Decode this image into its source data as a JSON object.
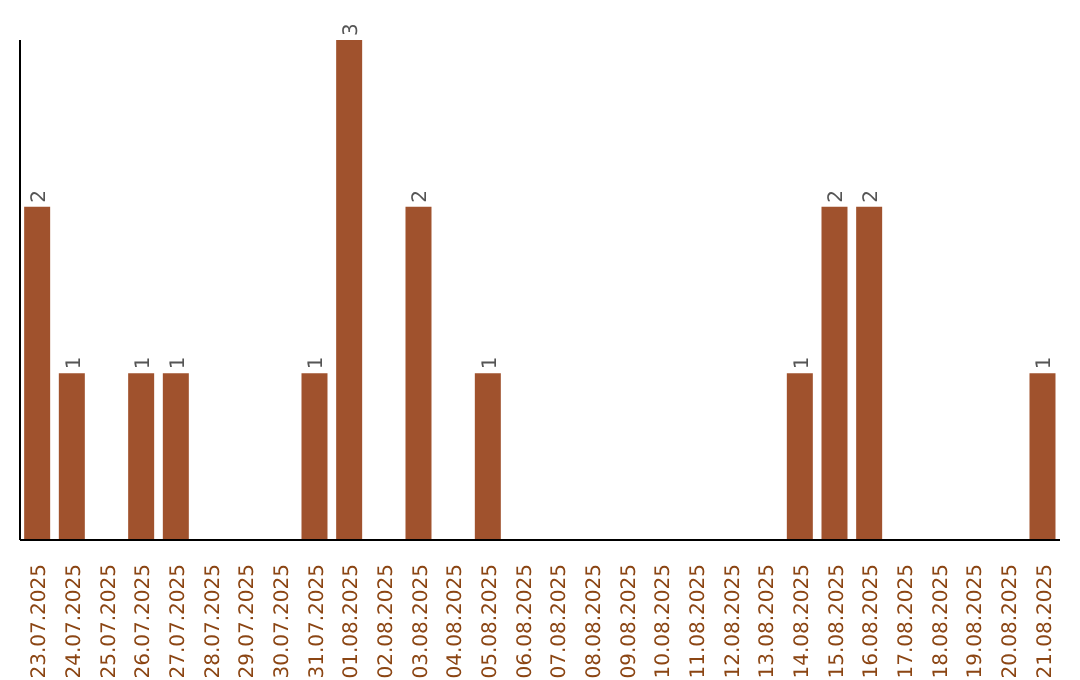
{
  "chart_data": {
    "type": "bar",
    "categories": [
      "23.07.2025",
      "24.07.2025",
      "25.07.2025",
      "26.07.2025",
      "27.07.2025",
      "28.07.2025",
      "29.07.2025",
      "30.07.2025",
      "31.07.2025",
      "01.08.2025",
      "02.08.2025",
      "03.08.2025",
      "04.08.2025",
      "05.08.2025",
      "06.08.2025",
      "07.08.2025",
      "08.08.2025",
      "09.08.2025",
      "10.08.2025",
      "11.08.2025",
      "12.08.2025",
      "13.08.2025",
      "14.08.2025",
      "15.08.2025",
      "16.08.2025",
      "17.08.2025",
      "18.08.2025",
      "19.08.2025",
      "20.08.2025",
      "21.08.2025"
    ],
    "values": [
      2,
      1,
      0,
      1,
      1,
      0,
      0,
      0,
      1,
      3,
      0,
      2,
      0,
      1,
      0,
      0,
      0,
      0,
      0,
      0,
      0,
      0,
      1,
      2,
      2,
      0,
      0,
      0,
      0,
      1
    ],
    "value_labels": [
      "2",
      "1",
      null,
      "1",
      "1",
      null,
      null,
      null,
      "1",
      "3",
      null,
      "2",
      null,
      "1",
      null,
      null,
      null,
      null,
      null,
      null,
      null,
      null,
      "1",
      "2",
      "2",
      null,
      null,
      null,
      null,
      "1"
    ],
    "color": "#a0522d",
    "tick_labels": "x",
    "grid": false
  }
}
